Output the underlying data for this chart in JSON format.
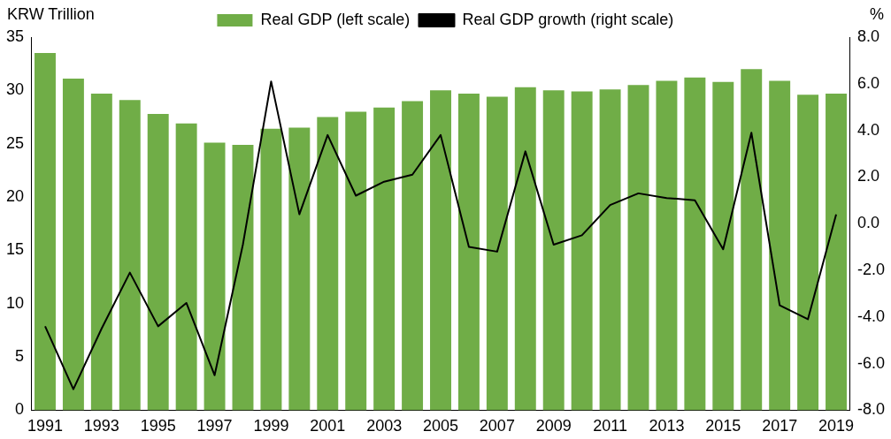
{
  "chart_data": {
    "type": "bar",
    "ylabel": "KRW Trillion",
    "y2label": "%",
    "categories": [
      "1991",
      null,
      "1993",
      null,
      "1995",
      null,
      "1997",
      null,
      "1999",
      null,
      "2001",
      null,
      "2003",
      null,
      "2005",
      null,
      "2007",
      null,
      "2009",
      null,
      "2011",
      null,
      "2013",
      null,
      "2015",
      null,
      "2017",
      null,
      "2019"
    ],
    "series": [
      {
        "name": "Real GDP (left scale)",
        "color": "#70ad47",
        "values": [
          33.5,
          31.1,
          29.7,
          29.1,
          27.8,
          26.9,
          25.1,
          24.9,
          26.4,
          26.5,
          27.5,
          28.0,
          28.4,
          29.0,
          30.0,
          29.7,
          29.4,
          30.3,
          30.0,
          29.9,
          30.1,
          30.5,
          30.9,
          31.2,
          30.8,
          32.0,
          30.9,
          29.6,
          29.7
        ]
      },
      {
        "name": "Real GDP growth (right scale)",
        "type": "line",
        "axis": "y2",
        "color": "#000000",
        "values": [
          -4.4,
          -7.1,
          -4.5,
          -2.1,
          -4.4,
          -3.4,
          -6.5,
          -0.9,
          6.1,
          0.4,
          3.8,
          1.2,
          1.8,
          2.1,
          3.8,
          -1.0,
          -1.2,
          3.1,
          -0.9,
          -0.5,
          0.8,
          1.3,
          1.1,
          1.0,
          -1.1,
          3.9,
          -3.5,
          -4.1,
          0.4
        ]
      }
    ],
    "ylim": [
      0,
      35
    ],
    "yticks": [
      0,
      5,
      10,
      15,
      20,
      25,
      30,
      35
    ],
    "y2lim": [
      -8,
      8
    ],
    "y2ticks": [
      {
        "value": -8,
        "label": "-8.0"
      },
      {
        "value": -6,
        "label": "-6.0"
      },
      {
        "value": -4,
        "label": "-4.0"
      },
      {
        "value": -2,
        "label": "-2.0"
      },
      {
        "value": 0,
        "label": "0.0"
      },
      {
        "value": 2,
        "label": "2.0"
      },
      {
        "value": 4,
        "label": "4.0"
      },
      {
        "value": 6,
        "label": "6.0"
      },
      {
        "value": 8,
        "label": "8.0"
      }
    ],
    "grid": false,
    "legend": "top",
    "marker": "none",
    "line_style": "solid"
  }
}
